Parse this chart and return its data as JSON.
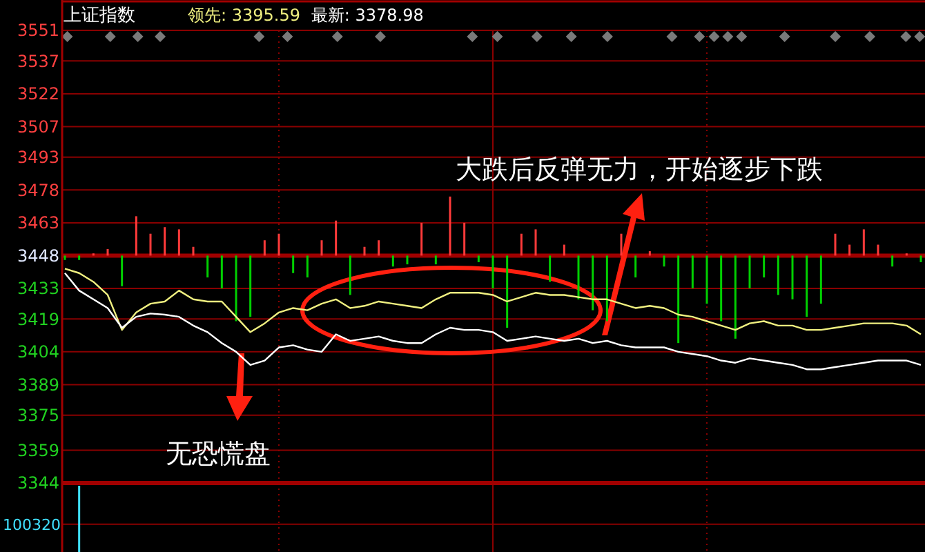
{
  "chart_data": [
    {
      "type": "line",
      "title": "上证指数",
      "categories": [
        null,
        null,
        null,
        null,
        null,
        null,
        null,
        null,
        null,
        null,
        null,
        null,
        null,
        null,
        null,
        null,
        null,
        null,
        null,
        null,
        null,
        null,
        null,
        null,
        null,
        null,
        null,
        null,
        null,
        null,
        null,
        null,
        null,
        null,
        null,
        null,
        null,
        null,
        null,
        null,
        null,
        null,
        null,
        null,
        null,
        null,
        null,
        null,
        null,
        null,
        null,
        null,
        null,
        null,
        null,
        null,
        null,
        null,
        null,
        null,
        null
      ],
      "series": [
        {
          "type": "bar",
          "base": [
            3448,
            3448,
            3448,
            3448,
            3448,
            3448,
            3448,
            3448,
            3448,
            3448,
            3448,
            3448,
            3448,
            3448,
            3448,
            3448,
            3448,
            3448,
            3448,
            3448,
            3448,
            3448,
            3448,
            3448,
            3448,
            3448,
            3448,
            3448,
            3448,
            3448,
            3448,
            3448,
            3448,
            3448,
            3448,
            3448,
            3448,
            3448,
            3448,
            3448,
            3448,
            3448,
            3448,
            3448,
            3448,
            3448,
            3448,
            3448,
            3448,
            3448,
            3448,
            3448,
            3448,
            3448,
            3448,
            3448,
            3448,
            3448,
            3448,
            3448,
            3448
          ],
          "values": [
            -2,
            -2,
            1,
            3,
            -14,
            18,
            10,
            13,
            12,
            4,
            -10,
            -15,
            -30,
            -28,
            7,
            10,
            -8,
            -10,
            7,
            16,
            -18,
            4,
            7,
            -5,
            -4,
            15,
            -4,
            27,
            15,
            -3,
            -15,
            -33,
            10,
            12,
            -12,
            5,
            -20,
            -25,
            -30,
            10,
            -10,
            2,
            -5,
            -40,
            -15,
            -22,
            -30,
            -38,
            -15,
            -10,
            -18,
            -20,
            -28,
            -22,
            10,
            5,
            12,
            5,
            -5,
            1,
            -3
          ],
          "colors": [
            "#00d000",
            "#00d000",
            "#ff3a3a",
            "#ff3a3a",
            "#00d000",
            "#ff3a3a",
            "#ff3a3a",
            "#ff3a3a",
            "#ff3a3a",
            "#ff3a3a",
            "#00d000",
            "#00d000",
            "#00d000",
            "#00d000",
            "#ff3a3a",
            "#ff3a3a",
            "#00d000",
            "#00d000",
            "#ff3a3a",
            "#ff3a3a",
            "#00d000",
            "#ff3a3a",
            "#ff3a3a",
            "#00d000",
            "#00d000",
            "#ff3a3a",
            "#00d000",
            "#ff3a3a",
            "#ff3a3a",
            "#00d000",
            "#00d000",
            "#00d000",
            "#ff3a3a",
            "#ff3a3a",
            "#00d000",
            "#ff3a3a",
            "#00d000",
            "#00d000",
            "#00d000",
            "#ff3a3a",
            "#00d000",
            "#ff3a3a",
            "#00d000",
            "#00d000",
            "#00d000",
            "#00d000",
            "#00d000",
            "#00d000",
            "#00d000",
            "#00d000",
            "#00d000",
            "#00d000",
            "#00d000",
            "#00d000",
            "#ff3a3a",
            "#ff3a3a",
            "#ff3a3a",
            "#ff3a3a",
            "#00d000",
            "#ff3a3a",
            "#00d000"
          ]
        },
        {
          "name": "领先: 3395.59",
          "color": "#f0f080",
          "values": [
            3442,
            3440,
            3436,
            3430,
            3414,
            3422,
            3426,
            3427,
            3432,
            3428,
            3427,
            3427,
            3420,
            3413,
            3417,
            3422,
            3424,
            3423,
            3426,
            3428,
            3424,
            3425,
            3427,
            3426,
            3425,
            3424,
            3428,
            3431,
            3431,
            3431,
            3430,
            3427,
            3429,
            3431,
            3430,
            3430,
            3429,
            3428,
            3428,
            3426,
            3424,
            3425,
            3424,
            3421,
            3420,
            3418,
            3416,
            3414,
            3417,
            3418,
            3416,
            3416,
            3414,
            3414,
            3415,
            3416,
            3417,
            3417,
            3417,
            3416,
            3412
          ]
        },
        {
          "name": "最新: 3378.98",
          "color": "#ffffff",
          "values": [
            3440,
            3432,
            3428,
            3424,
            3415,
            3420,
            3421.5,
            3421,
            3420,
            3416,
            3413,
            3408,
            3404,
            3398,
            3400,
            3406,
            3407,
            3405,
            3404,
            3412,
            3409,
            3410,
            3411,
            3409,
            3408,
            3408,
            3412,
            3415,
            3414,
            3414,
            3413,
            3409,
            3410,
            3411,
            3410,
            3409,
            3410,
            3408,
            3409,
            3407,
            3406,
            3406,
            3406,
            3404,
            3403,
            3402,
            3400,
            3399,
            3401,
            3400,
            3399,
            3398,
            3396,
            3396,
            3397,
            3398,
            3399,
            3400,
            3400,
            3400,
            3398
          ]
        }
      ],
      "ylim": [
        3344,
        3551
      ],
      "yticks": [
        3344,
        3359,
        3375,
        3389,
        3404,
        3419,
        3433,
        3448,
        3463,
        3478,
        3493,
        3507,
        3522,
        3537,
        3551
      ],
      "ref_lines": [
        {
          "axis": "y",
          "value": 3448,
          "color": "#a00000"
        }
      ],
      "grid": true,
      "legend": "top left",
      "tick_labels": "y",
      "marker": "none",
      "line_style": "solid",
      "annotations": [
        "大跌后反弹无力，开始逐步下跌",
        "无恐慌盘"
      ]
    },
    {
      "type": "bar",
      "ylim": [
        0,
        240000
      ],
      "yticks": [
        100320
      ],
      "categories": [
        null,
        null,
        null,
        null,
        null,
        null,
        null,
        null,
        null,
        null,
        null,
        null,
        null,
        null,
        null,
        null,
        null,
        null,
        null,
        null,
        null,
        null,
        null,
        null,
        null,
        null,
        null,
        null,
        null,
        null,
        null,
        null,
        null,
        null,
        null,
        null,
        null,
        null,
        null,
        null,
        null,
        null,
        null,
        null,
        null,
        null,
        null,
        null,
        null,
        null,
        null,
        null,
        null,
        null,
        null,
        null,
        null,
        null,
        null,
        null,
        null
      ],
      "values": [
        null,
        240000,
        null,
        null,
        null,
        null,
        null,
        null,
        null,
        null,
        null,
        null,
        null,
        null,
        null,
        null,
        null,
        null,
        null,
        null,
        null,
        null,
        null,
        null,
        null,
        null,
        null,
        null,
        null,
        null,
        null,
        null,
        null,
        null,
        null,
        null,
        null,
        null,
        null,
        null,
        null,
        null,
        null,
        null,
        null,
        null,
        null,
        null,
        null,
        null,
        null,
        null,
        null,
        null,
        null,
        null,
        null,
        null,
        null,
        null,
        null
      ],
      "color": "#40e0ff",
      "grid": true,
      "tick_labels": "y"
    }
  ]
}
